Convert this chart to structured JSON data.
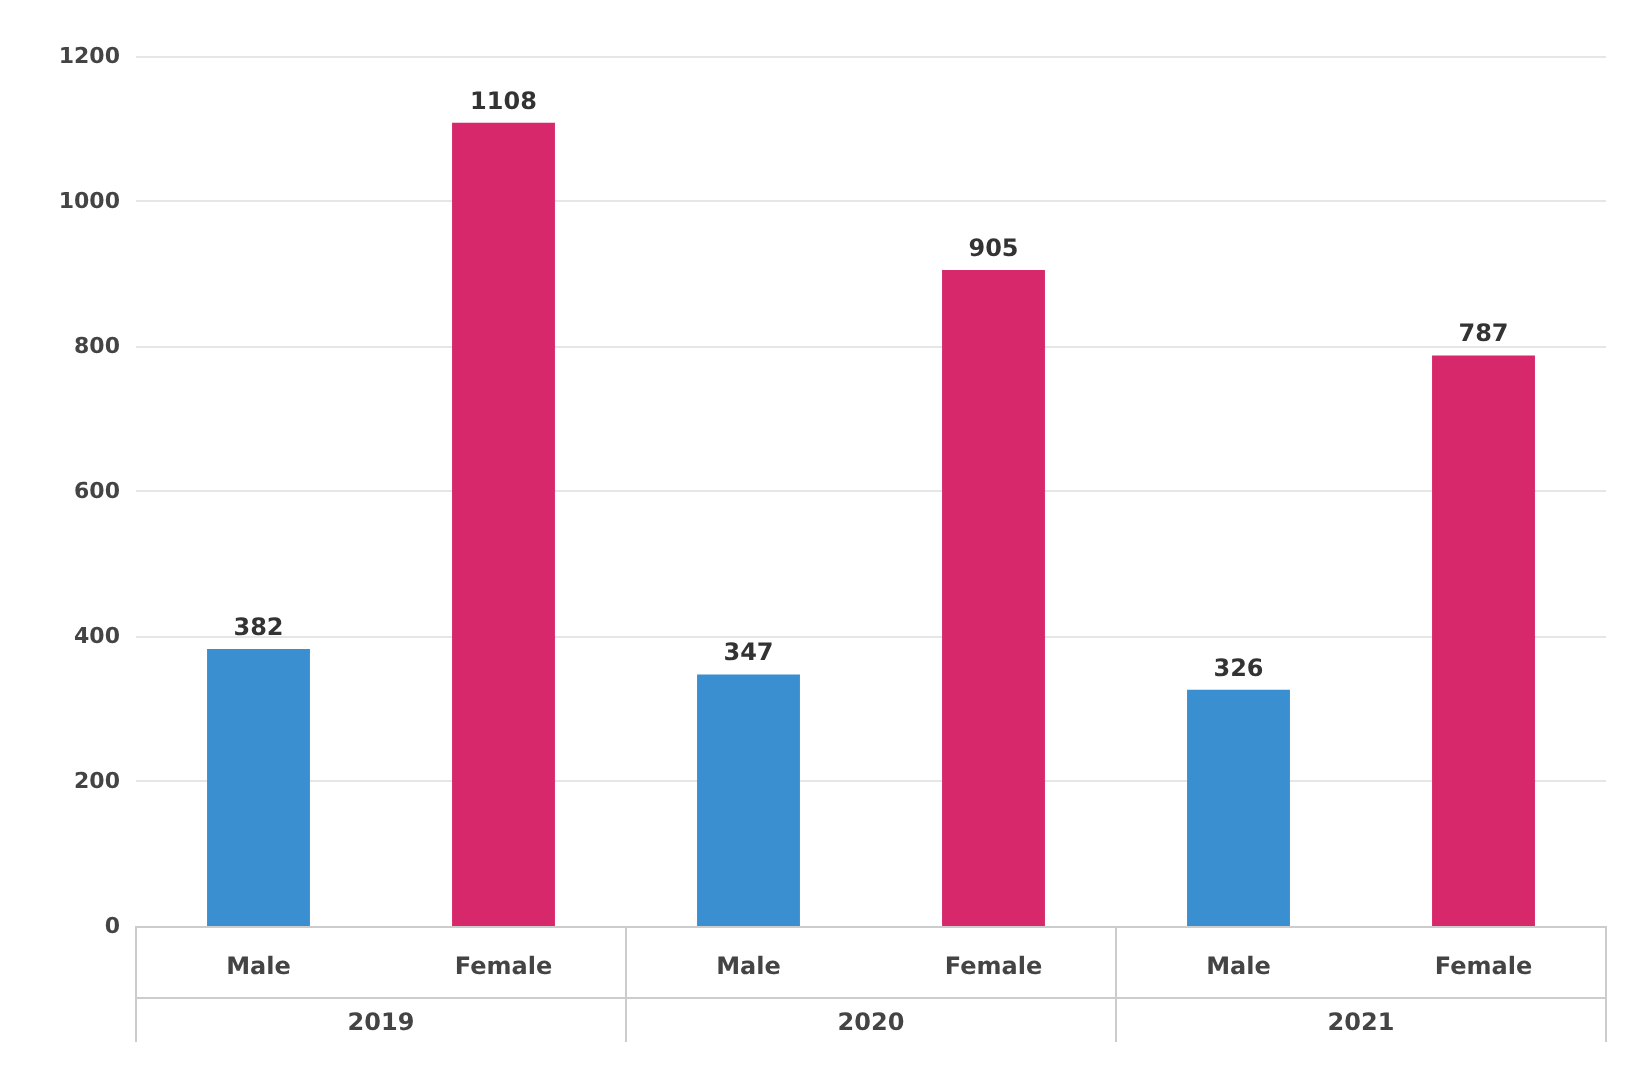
{
  "chart_data": {
    "type": "bar",
    "categories": [
      "Male",
      "Female",
      "Male",
      "Female",
      "Male",
      "Female"
    ],
    "values": [
      382,
      1108,
      347,
      905,
      326,
      787
    ],
    "colors": [
      "#3a8fd0",
      "#d6286a",
      "#3a8fd0",
      "#d6286a",
      "#3a8fd0",
      "#d6286a"
    ],
    "annotations": [
      "2019",
      "2020",
      "2021"
    ],
    "ylim": [
      0,
      1200
    ],
    "yticks": [
      0,
      200,
      400,
      600,
      800,
      1000,
      1200
    ],
    "grid": "y",
    "data_labels": true
  }
}
